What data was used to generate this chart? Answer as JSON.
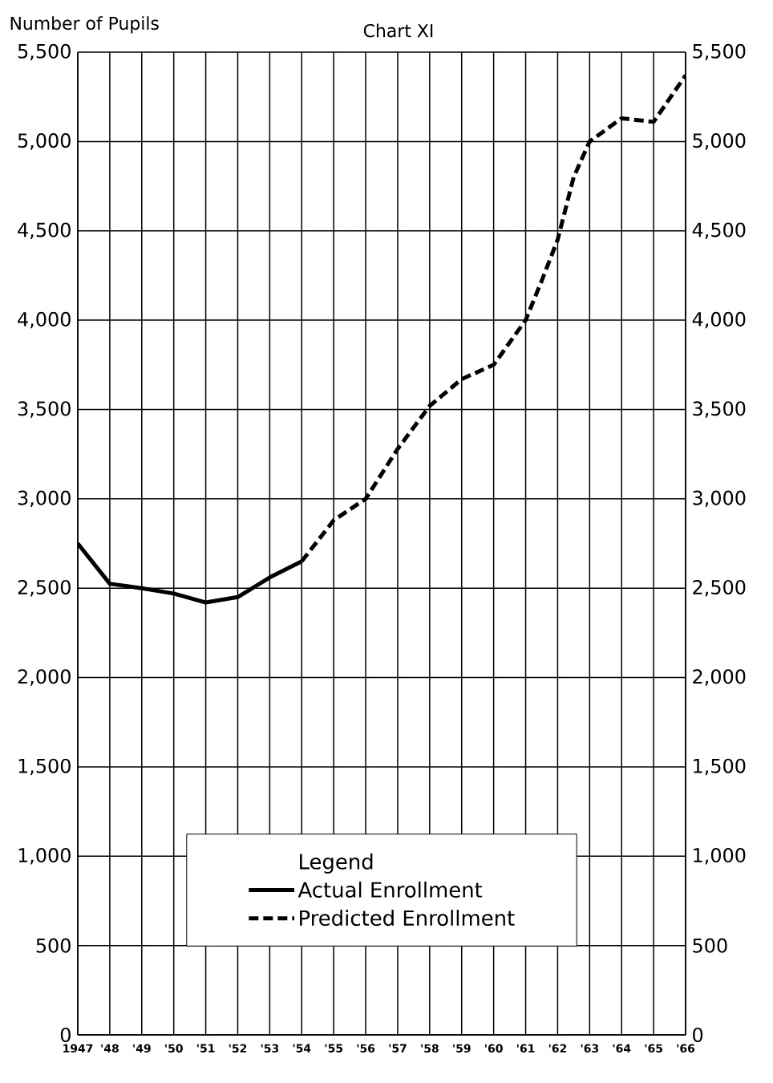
{
  "chart_data": {
    "type": "line",
    "title": "Chart XI",
    "ylabel": "Number of Pupils",
    "legend_title": "Legend",
    "series": [
      {
        "name": "Actual Enrollment",
        "color": "#000000",
        "line_style": "solid",
        "x": [
          1947,
          1948,
          1949,
          1950,
          1951,
          1952,
          1953,
          1954
        ],
        "values": [
          2750,
          2525,
          2500,
          2470,
          2420,
          2450,
          2560,
          2650
        ]
      },
      {
        "name": "Predicted Enrollment",
        "color": "#000000",
        "line_style": "dashed",
        "x": [
          1954,
          1955,
          1956,
          1957,
          1958,
          1959,
          1960,
          1961,
          1961.5,
          1962,
          1962.5,
          1963,
          1964,
          1965,
          1966
        ],
        "values": [
          2650,
          2880,
          3000,
          3280,
          3520,
          3670,
          3750,
          4000,
          4220,
          4450,
          4800,
          5000,
          5130,
          5110,
          5370
        ]
      }
    ],
    "xlim": [
      1947,
      1966
    ],
    "xticks": [
      1947,
      {
        "value": 1948,
        "label": "'48"
      },
      {
        "value": 1949,
        "label": "'49"
      },
      {
        "value": 1950,
        "label": "'50"
      },
      {
        "value": 1951,
        "label": "'51"
      },
      {
        "value": 1952,
        "label": "'52"
      },
      {
        "value": 1953,
        "label": "'53"
      },
      {
        "value": 1954,
        "label": "'54"
      },
      {
        "value": 1955,
        "label": "'55"
      },
      {
        "value": 1956,
        "label": "'56"
      },
      {
        "value": 1957,
        "label": "'57"
      },
      {
        "value": 1958,
        "label": "'58"
      },
      {
        "value": 1959,
        "label": "'59"
      },
      {
        "value": 1960,
        "label": "'60"
      },
      {
        "value": 1961,
        "label": "'61"
      },
      {
        "value": 1962,
        "label": "'62"
      },
      {
        "value": 1963,
        "label": "'63"
      },
      {
        "value": 1964,
        "label": "'64"
      },
      {
        "value": 1965,
        "label": "'65"
      },
      {
        "value": 1966,
        "label": "'66"
      }
    ],
    "ylim": [
      0,
      5500
    ],
    "yticks": [
      0,
      500,
      {
        "value": 1000,
        "label": "1,000"
      },
      {
        "value": 1500,
        "label": "1,500"
      },
      {
        "value": 2000,
        "label": "2,000"
      },
      {
        "value": 2500,
        "label": "2,500"
      },
      {
        "value": 3000,
        "label": "3,000"
      },
      {
        "value": 3500,
        "label": "3,500"
      },
      {
        "value": 4000,
        "label": "4,000"
      },
      {
        "value": 4500,
        "label": "4,500"
      },
      {
        "value": 5000,
        "label": "5,000"
      },
      {
        "value": 5500,
        "label": "5,500"
      }
    ],
    "y2lim": [
      0,
      5500
    ],
    "y2ticks": [
      0,
      500,
      {
        "value": 1000,
        "label": "1,000"
      },
      {
        "value": 1500,
        "label": "1,500"
      },
      {
        "value": 2000,
        "label": "2,000"
      },
      {
        "value": 2500,
        "label": "2,500"
      },
      {
        "value": 3000,
        "label": "3,000"
      },
      {
        "value": 3500,
        "label": "3,500"
      },
      {
        "value": 4000,
        "label": "4,000"
      },
      {
        "value": 4500,
        "label": "4,500"
      },
      {
        "value": 5000,
        "label": "5,000"
      },
      {
        "value": 5500,
        "label": "5,500"
      }
    ],
    "grid": true,
    "legend": "bottom",
    "marker": "none"
  }
}
